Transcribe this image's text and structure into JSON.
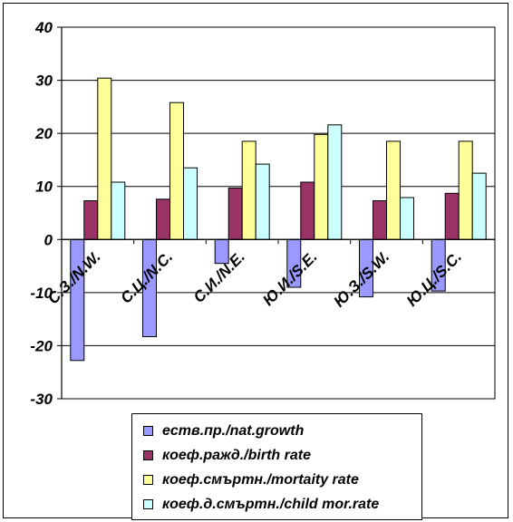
{
  "chart_data": {
    "type": "bar",
    "title": "",
    "xlabel": "",
    "ylabel": "",
    "ylim": [
      -30,
      40
    ],
    "y_ticks": [
      40,
      30,
      20,
      10,
      0,
      -10,
      -20,
      -30
    ],
    "grid": true,
    "legend_position": "bottom",
    "categories": [
      "С.З./N.W.",
      "С.Ц./N.C.",
      "С.И./N.E.",
      "Ю.И./S.E.",
      "Ю.З./S.W.",
      "Ю.Ц./S.C."
    ],
    "series": [
      {
        "name": "ecmв.пp./nat.growth",
        "color": "#9999ff",
        "values": [
          -22.8,
          -18.3,
          -4.5,
          -9.0,
          -10.8,
          -9.7
        ]
      },
      {
        "name": "кoeф.paжд./birth rate",
        "color": "#993366",
        "values": [
          7.3,
          7.6,
          9.7,
          10.8,
          7.3,
          8.7
        ]
      },
      {
        "name": "кoeф.cмъpтн./mortaity rate",
        "color": "#ffff99",
        "values": [
          30.4,
          25.8,
          18.5,
          19.8,
          18.5,
          18.5
        ]
      },
      {
        "name": "кoeф.д.cмъpтн./child mor.rate",
        "color": "#ccffff",
        "values": [
          10.8,
          13.5,
          14.2,
          21.6,
          7.9,
          12.5
        ]
      }
    ]
  }
}
